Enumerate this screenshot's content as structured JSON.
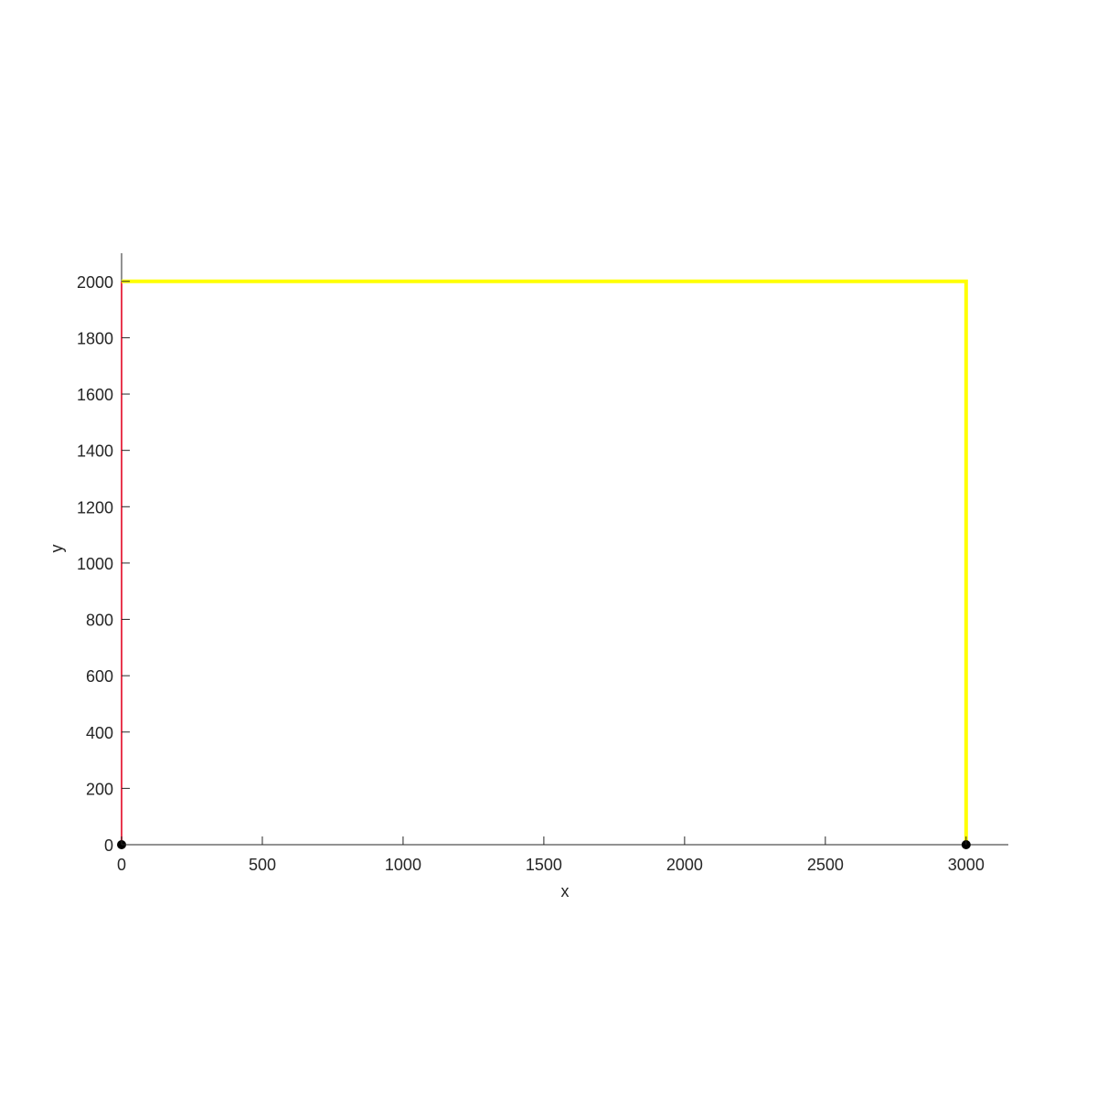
{
  "chart_data": {
    "type": "line",
    "title": "",
    "xlabel": "x",
    "ylabel": "y",
    "xlim": [
      0,
      3150
    ],
    "ylim": [
      0,
      2100
    ],
    "grid": false,
    "x_ticks": [
      0,
      500,
      1000,
      1500,
      2000,
      2500,
      3000
    ],
    "x_tick_labels": [
      "0",
      "500",
      "1000",
      "1500",
      "2000",
      "2500",
      "3000"
    ],
    "y_ticks": [
      0,
      200,
      400,
      600,
      800,
      1000,
      1200,
      1400,
      1600,
      1800,
      2000
    ],
    "y_tick_labels": [
      "0",
      "200",
      "400",
      "600",
      "800",
      "1000",
      "1200",
      "1400",
      "1600",
      "1800",
      "2000"
    ],
    "series": [
      {
        "color": "#e8384f",
        "width": 2,
        "points": [
          [
            0,
            0
          ],
          [
            0,
            2000
          ]
        ]
      },
      {
        "color": "#ffff00",
        "width": 4,
        "points": [
          [
            0,
            2000
          ],
          [
            3000,
            2000
          ],
          [
            3000,
            0
          ]
        ]
      }
    ],
    "markers": [
      {
        "x": 0,
        "y": 0,
        "color": "#000000"
      },
      {
        "x": 3000,
        "y": 0,
        "color": "#000000"
      }
    ]
  }
}
